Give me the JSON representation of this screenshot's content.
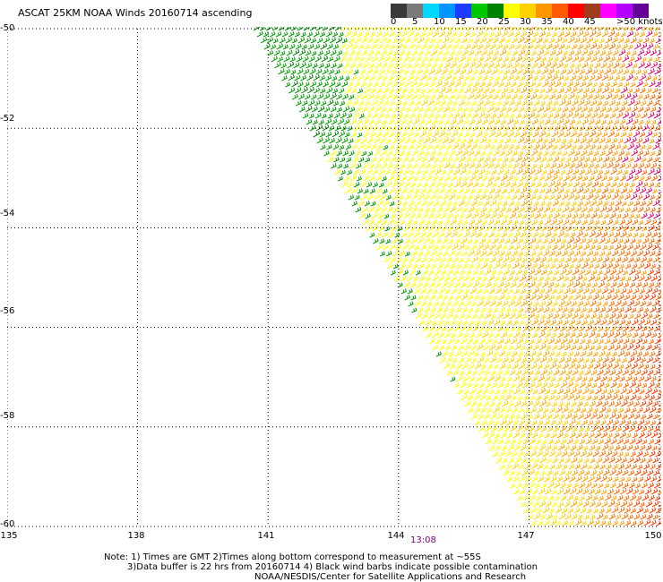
{
  "title": "ASCAT 25KM NOAA Winds 20160714 ascending",
  "colorbar": {
    "colors": [
      "#3a3a3a",
      "#7a7a7a",
      "#00d8ff",
      "#0096ff",
      "#1e3cff",
      "#00c800",
      "#008200",
      "#ffff00",
      "#ffd200",
      "#ff9600",
      "#ff5a00",
      "#ff0000",
      "#a03c1e",
      "#ff00ff",
      "#b400ff",
      "#640096"
    ],
    "labels": [
      "0",
      "5",
      "10",
      "15",
      "20",
      "25",
      "30",
      "35",
      "40",
      "45",
      ">50 knots"
    ]
  },
  "map": {
    "lat_labels": [
      "-50",
      "-52",
      "-54",
      "-56",
      "-58",
      "-60"
    ],
    "lon_labels": [
      "135",
      "138",
      "141",
      "144",
      "147",
      "150"
    ],
    "lat_range": [
      -60,
      -50
    ],
    "lon_range": [
      135,
      150
    ],
    "swath_time": "13:08"
  },
  "notes": {
    "line1": "Note: 1) Times are GMT 2)Times along bottom correspond to measurement at ~55S",
    "line2": "3)Data buffer is 22 hrs from 20160714 4) Black wind barbs indicate possible contamination",
    "line3": "NOAA/NESDIS/Center for Satellite Applications and Research"
  }
}
